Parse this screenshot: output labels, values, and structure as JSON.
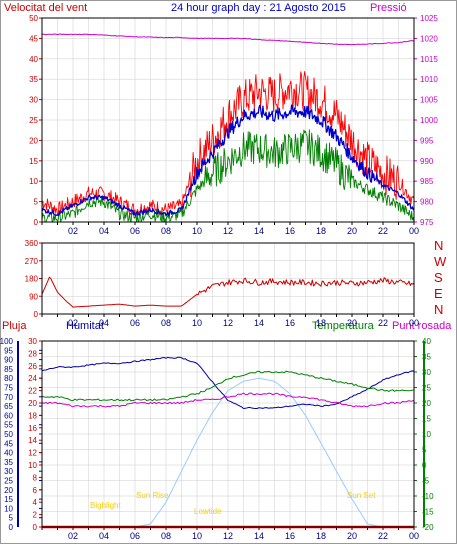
{
  "header": {
    "left": "Velocitat del vent",
    "center": "24 hour graph day : 21 Agosto 2015",
    "right": "Pressió"
  },
  "direction_labels": [
    "N",
    "W",
    "S",
    "E",
    "N"
  ],
  "bottom_headers": {
    "rain": "Pluja",
    "humidity": "Humitat",
    "temperature": "Temperatura",
    "dewpoint": "Punt rosada"
  },
  "sun_labels": {
    "bighlight": "Bighlight",
    "sunrise": "Sun Rise",
    "lowtide": "Lowtide",
    "sunset": "Sun Set"
  },
  "colors": {
    "wind_gust": "#ff0000",
    "wind_avg": "#0000cc",
    "wind_min": "#008000",
    "pressure": "#cc00cc",
    "direction": "#cc0000",
    "humidity": "#0000aa",
    "temperature": "#008000",
    "dewpoint": "#cc00cc",
    "sun": "#99ccff",
    "sun_label": "#ffcc00",
    "rain": "#ff0000",
    "grid": "#cccccc",
    "axis": "#000000"
  },
  "chart_data": [
    {
      "type": "line",
      "name": "wind",
      "xlabels": [
        "02",
        "04",
        "06",
        "08",
        "10",
        "12",
        "14",
        "16",
        "18",
        "20",
        "22",
        "00"
      ],
      "x": [
        0,
        1,
        2,
        3,
        4,
        5,
        6,
        7,
        8,
        9,
        10,
        11,
        12,
        13,
        14,
        15,
        16,
        17,
        18,
        19,
        20,
        21,
        22,
        23,
        24
      ],
      "ylim_left": [
        0,
        50
      ],
      "yticks_left": [
        0,
        5,
        10,
        15,
        20,
        25,
        30,
        35,
        40,
        45,
        50
      ],
      "ylim_right": [
        975,
        1025
      ],
      "yticks_right": [
        975,
        980,
        985,
        990,
        995,
        1000,
        1005,
        1010,
        1015,
        1020,
        1025
      ],
      "series": [
        {
          "key": "gust",
          "values": [
            5,
            3,
            5,
            7,
            7,
            5,
            3,
            4,
            3,
            4,
            15,
            20,
            26,
            30,
            32,
            31,
            33,
            32,
            30,
            26,
            20,
            15,
            12,
            10,
            5
          ]
        },
        {
          "key": "avg",
          "values": [
            3,
            2,
            4,
            6,
            6,
            4,
            2,
            3,
            2,
            3,
            12,
            17,
            22,
            26,
            27,
            26,
            27,
            27,
            25,
            21,
            16,
            12,
            9,
            7,
            3
          ]
        },
        {
          "key": "min",
          "values": [
            1,
            1,
            2,
            5,
            5,
            2,
            1,
            2,
            1,
            2,
            8,
            12,
            15,
            18,
            18,
            17,
            18,
            19,
            17,
            14,
            10,
            8,
            6,
            4,
            1
          ]
        },
        {
          "key": "pressure",
          "axis": "right",
          "values": [
            1021,
            1021,
            1021,
            1021,
            1020.8,
            1020.6,
            1020.4,
            1020.3,
            1020.2,
            1020.2,
            1020,
            1020,
            1020,
            1020,
            1019.7,
            1019.5,
            1019.3,
            1019,
            1018.8,
            1018.6,
            1018.5,
            1018.6,
            1018.8,
            1019,
            1019.5
          ]
        }
      ]
    },
    {
      "type": "line",
      "name": "wind direction",
      "xlabels": [
        "02",
        "04",
        "06",
        "08",
        "10",
        "12",
        "14",
        "16",
        "18",
        "20",
        "22",
        "00"
      ],
      "x": [
        0,
        0.5,
        1,
        1.5,
        2,
        3,
        4,
        5,
        6,
        7,
        8,
        9,
        10,
        11,
        12,
        13,
        14,
        15,
        16,
        17,
        18,
        19,
        20,
        21,
        22,
        23,
        24
      ],
      "ylim": [
        0,
        360
      ],
      "yticks": [
        0,
        90,
        180,
        270,
        360
      ],
      "values": [
        100,
        190,
        110,
        70,
        35,
        40,
        45,
        50,
        40,
        45,
        40,
        40,
        100,
        140,
        160,
        170,
        160,
        165,
        160,
        160,
        155,
        160,
        155,
        160,
        170,
        160,
        150
      ]
    },
    {
      "type": "line",
      "name": "humidity temperature dewpoint",
      "xlabels": [
        "02",
        "04",
        "06",
        "08",
        "10",
        "12",
        "14",
        "16",
        "18",
        "20",
        "22",
        "00"
      ],
      "x": [
        0,
        1,
        2,
        3,
        4,
        5,
        6,
        7,
        8,
        9,
        10,
        11,
        12,
        13,
        14,
        15,
        16,
        17,
        18,
        19,
        20,
        21,
        22,
        23,
        24
      ],
      "ylim_humidity": [
        0,
        100
      ],
      "yticks_humidity": [
        0,
        5,
        10,
        15,
        20,
        25,
        30,
        35,
        40,
        45,
        50,
        55,
        60,
        65,
        70,
        75,
        80,
        85,
        90,
        95,
        100
      ],
      "ylim_rain": [
        0,
        30
      ],
      "yticks_rain": [
        0,
        2,
        4,
        6,
        8,
        10,
        12,
        14,
        16,
        18,
        20,
        22,
        24,
        26,
        28,
        30
      ],
      "ylim_temp": [
        -20,
        40
      ],
      "yticks_temp": [
        -20,
        -15,
        -10,
        -5,
        0,
        5,
        10,
        15,
        20,
        25,
        30,
        35,
        40
      ],
      "series": [
        {
          "key": "humidity",
          "axis": "humidity",
          "values": [
            84,
            86,
            86,
            87,
            88,
            88,
            89,
            90,
            91,
            91,
            88,
            78,
            68,
            64,
            64,
            64,
            65,
            66,
            65,
            66,
            70,
            74,
            79,
            82,
            84
          ]
        },
        {
          "key": "temperature",
          "axis": "temp",
          "values": [
            22,
            22,
            21,
            21,
            21,
            21,
            21,
            21,
            21,
            22,
            23,
            25,
            28,
            29,
            30,
            30,
            30,
            29,
            28,
            27,
            26,
            25,
            24,
            24,
            24
          ]
        },
        {
          "key": "dewpoint",
          "axis": "temp",
          "values": [
            20,
            20,
            19,
            19,
            19,
            19,
            20,
            20,
            20,
            20,
            21,
            21,
            22,
            23,
            23,
            23,
            22,
            22,
            21,
            20,
            19,
            19,
            20,
            20,
            21
          ]
        },
        {
          "key": "sun",
          "axis": "temp",
          "values": [
            -20,
            -20,
            -20,
            -20,
            -20,
            -20,
            -20,
            -19,
            -12,
            -2,
            8,
            17,
            24,
            27,
            28,
            27,
            23,
            16,
            7,
            -2,
            -11,
            -19,
            -20,
            -20,
            -20
          ]
        },
        {
          "key": "rain",
          "axis": "rain",
          "values": [
            0,
            0,
            0,
            0,
            0,
            0,
            0,
            0,
            0,
            0,
            0,
            0,
            0,
            0,
            0,
            0,
            0,
            0,
            0,
            0,
            0,
            0,
            0,
            0,
            0
          ]
        }
      ]
    }
  ]
}
